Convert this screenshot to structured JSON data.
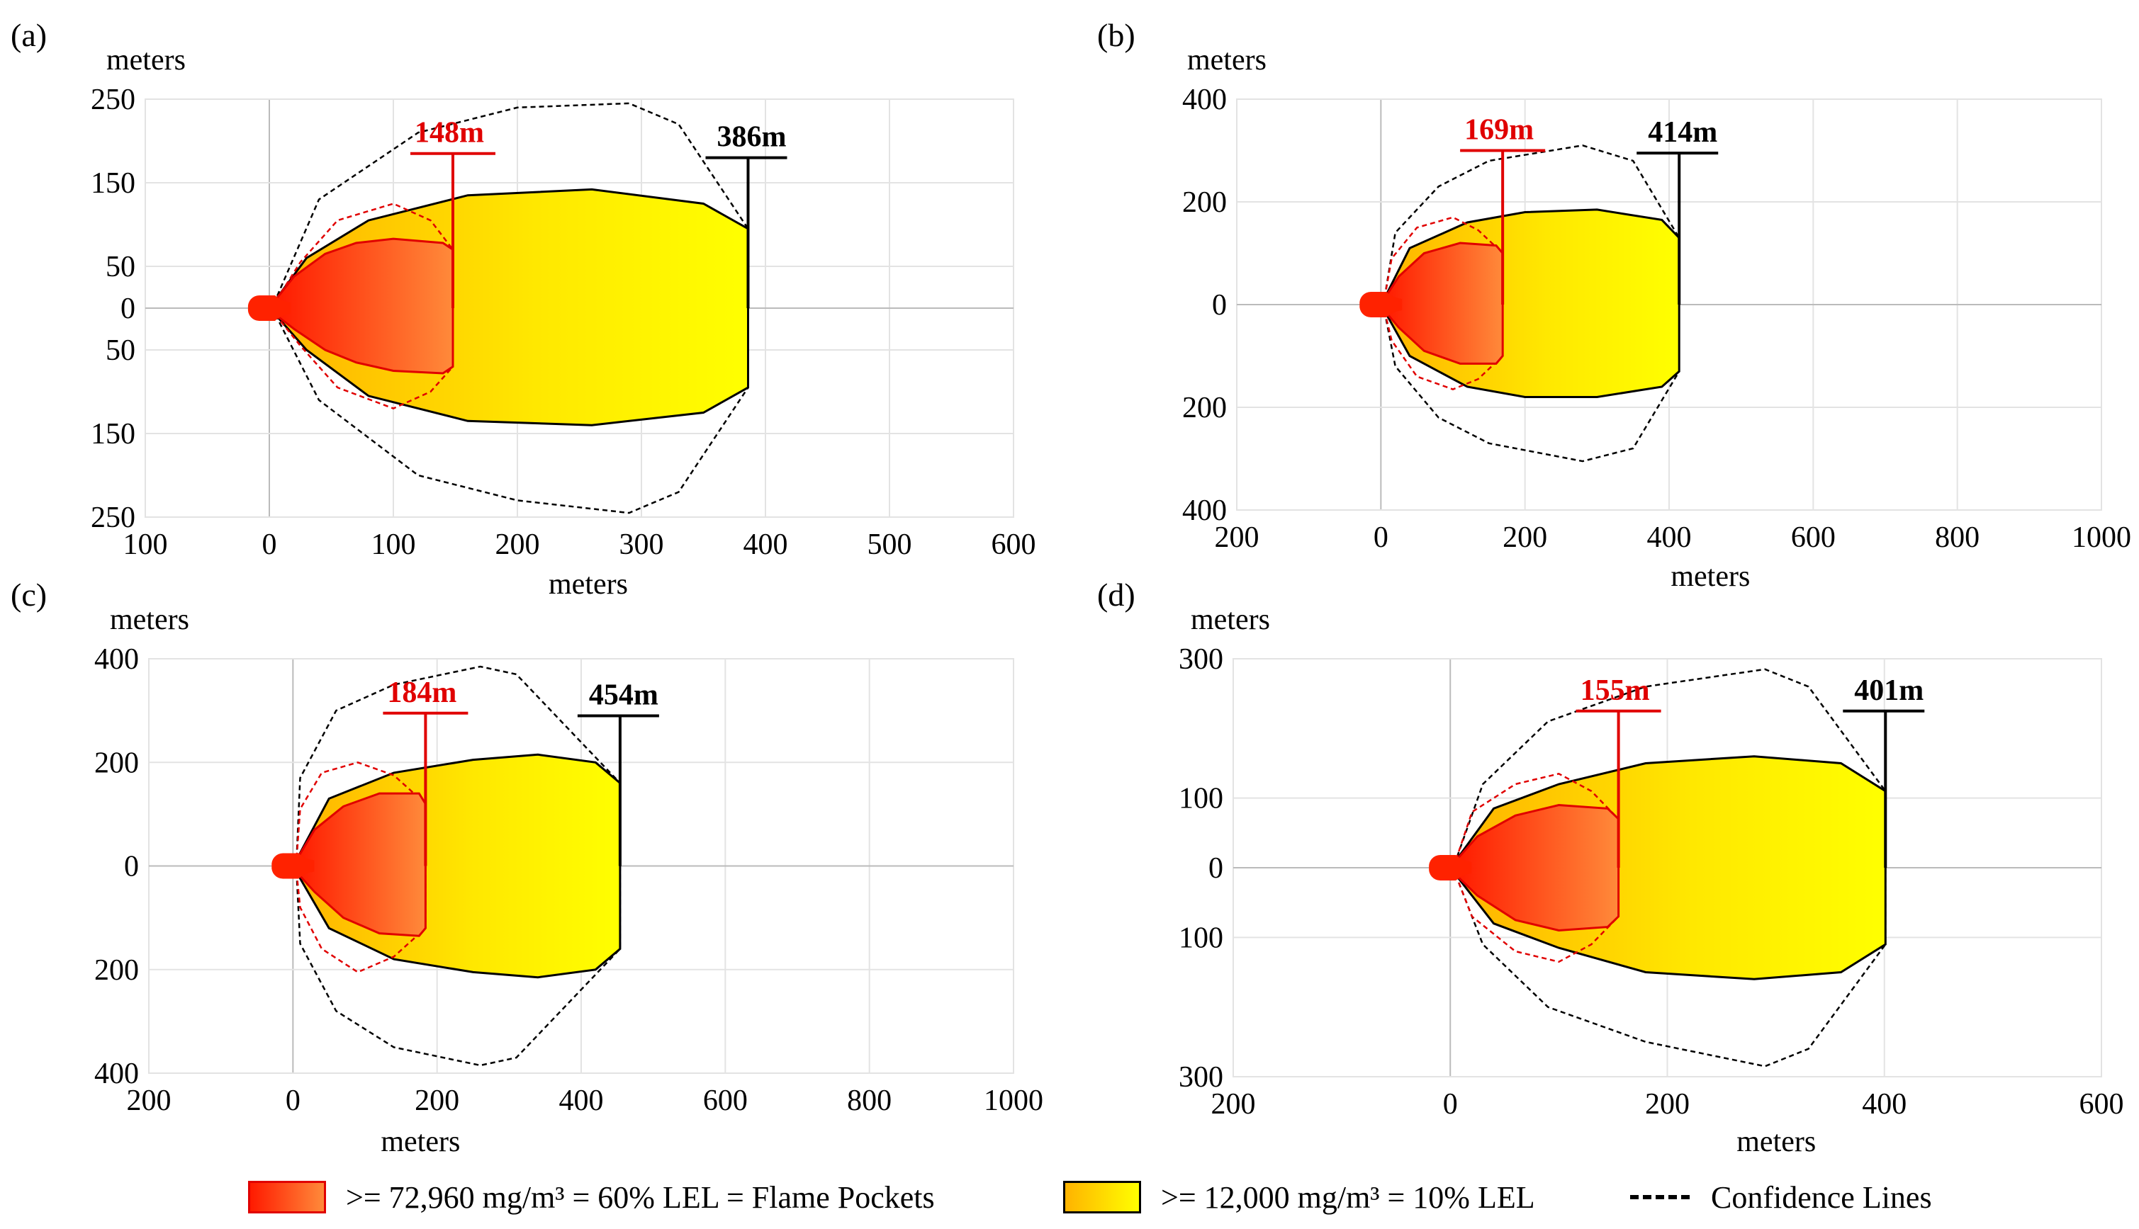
{
  "legend": {
    "flame_pockets": ">= 72,960 mg/m³ = 60% LEL = Flame Pockets",
    "lel10": ">= 12,000 mg/m³ = 10% LEL",
    "confidence": "Confidence Lines"
  },
  "colors": {
    "flame_pocket_outline": "#e00000",
    "flame_gradient": [
      "#ff1a00",
      "#ff8a3a"
    ],
    "lel10_gradient": [
      "#ffb300",
      "#ffff00"
    ],
    "outline": "#000000",
    "grid": "#e3e3e3",
    "axis": "#bbbbbb"
  },
  "chart_data": [
    {
      "panel_label": "(a)",
      "type": "area",
      "xlabel": "meters",
      "ylabel": "meters",
      "xlim": [
        -100,
        600
      ],
      "ylim": [
        -250,
        250
      ],
      "xticks": [
        -100,
        0,
        100,
        200,
        300,
        400,
        500,
        600
      ],
      "xtick_labels": [
        "100",
        "0",
        "100",
        "200",
        "300",
        "400",
        "500",
        "600"
      ],
      "yticks": [
        250,
        150,
        50,
        0,
        -50,
        -150,
        -250
      ],
      "ytick_labels": [
        "250",
        "150",
        "50",
        "0",
        "50",
        "150",
        "250"
      ],
      "grid": true,
      "flame_pocket_length_label": "148m",
      "flame_pocket_length": 148,
      "lel10_length_label": "386m",
      "lel10_length": 386,
      "flame_pocket_marker_y": 185,
      "lel10_marker_y": 180,
      "flame_pocket_boundary": [
        [
          5,
          -8
        ],
        [
          20,
          -25
        ],
        [
          45,
          -50
        ],
        [
          70,
          -65
        ],
        [
          100,
          -75
        ],
        [
          140,
          -78
        ],
        [
          148,
          -70
        ],
        [
          148,
          70
        ],
        [
          140,
          78
        ],
        [
          100,
          83
        ],
        [
          70,
          78
        ],
        [
          45,
          65
        ],
        [
          20,
          38
        ],
        [
          5,
          10
        ]
      ],
      "flame_pocket_confidence": [
        [
          5,
          -8
        ],
        [
          25,
          -45
        ],
        [
          55,
          -95
        ],
        [
          100,
          -120
        ],
        [
          130,
          -100
        ],
        [
          148,
          -70
        ],
        [
          148,
          70
        ],
        [
          130,
          105
        ],
        [
          100,
          125
        ],
        [
          55,
          105
        ],
        [
          25,
          55
        ],
        [
          5,
          8
        ]
      ],
      "lel10_boundary": [
        [
          5,
          -8
        ],
        [
          30,
          -50
        ],
        [
          80,
          -105
        ],
        [
          160,
          -135
        ],
        [
          260,
          -140
        ],
        [
          350,
          -125
        ],
        [
          386,
          -95
        ],
        [
          386,
          95
        ],
        [
          350,
          125
        ],
        [
          260,
          142
        ],
        [
          160,
          135
        ],
        [
          80,
          105
        ],
        [
          30,
          60
        ],
        [
          5,
          10
        ]
      ],
      "lel10_confidence": [
        [
          5,
          -8
        ],
        [
          40,
          -110
        ],
        [
          120,
          -200
        ],
        [
          200,
          -230
        ],
        [
          290,
          -245
        ],
        [
          330,
          -220
        ],
        [
          386,
          -95
        ],
        [
          386,
          95
        ],
        [
          330,
          220
        ],
        [
          290,
          245
        ],
        [
          200,
          240
        ],
        [
          120,
          210
        ],
        [
          40,
          130
        ],
        [
          5,
          10
        ]
      ]
    },
    {
      "panel_label": "(b)",
      "type": "area",
      "xlabel": "meters",
      "ylabel": "meters",
      "xlim": [
        -200,
        1000
      ],
      "ylim": [
        -400,
        400
      ],
      "xticks": [
        -200,
        0,
        200,
        400,
        600,
        800,
        1000
      ],
      "xtick_labels": [
        "200",
        "0",
        "200",
        "400",
        "600",
        "800",
        "1000"
      ],
      "yticks": [
        400,
        200,
        0,
        -200,
        -400
      ],
      "ytick_labels": [
        "400",
        "200",
        "0",
        "200",
        "400"
      ],
      "grid": true,
      "flame_pocket_length_label": "169m",
      "flame_pocket_length": 169,
      "lel10_length_label": "414m",
      "lel10_length": 414,
      "flame_pocket_marker_y": 300,
      "lel10_marker_y": 295,
      "flame_pocket_boundary": [
        [
          5,
          -12
        ],
        [
          25,
          -45
        ],
        [
          60,
          -90
        ],
        [
          110,
          -115
        ],
        [
          160,
          -115
        ],
        [
          169,
          -100
        ],
        [
          169,
          100
        ],
        [
          160,
          115
        ],
        [
          110,
          120
        ],
        [
          60,
          100
        ],
        [
          25,
          55
        ],
        [
          5,
          12
        ]
      ],
      "flame_pocket_confidence": [
        [
          5,
          -12
        ],
        [
          15,
          -70
        ],
        [
          50,
          -140
        ],
        [
          100,
          -165
        ],
        [
          135,
          -145
        ],
        [
          169,
          -100
        ],
        [
          169,
          100
        ],
        [
          135,
          145
        ],
        [
          100,
          170
        ],
        [
          50,
          150
        ],
        [
          15,
          90
        ],
        [
          5,
          12
        ]
      ],
      "lel10_boundary": [
        [
          5,
          -12
        ],
        [
          40,
          -100
        ],
        [
          120,
          -160
        ],
        [
          200,
          -180
        ],
        [
          300,
          -180
        ],
        [
          390,
          -160
        ],
        [
          414,
          -130
        ],
        [
          414,
          130
        ],
        [
          390,
          165
        ],
        [
          300,
          185
        ],
        [
          200,
          180
        ],
        [
          120,
          160
        ],
        [
          40,
          110
        ],
        [
          5,
          12
        ]
      ],
      "lel10_confidence": [
        [
          5,
          -12
        ],
        [
          20,
          -120
        ],
        [
          80,
          -220
        ],
        [
          150,
          -270
        ],
        [
          280,
          -305
        ],
        [
          350,
          -280
        ],
        [
          414,
          -130
        ],
        [
          414,
          130
        ],
        [
          350,
          280
        ],
        [
          280,
          310
        ],
        [
          150,
          280
        ],
        [
          80,
          230
        ],
        [
          20,
          140
        ],
        [
          5,
          12
        ]
      ]
    },
    {
      "panel_label": "(c)",
      "type": "area",
      "xlabel": "meters",
      "ylabel": "meters",
      "xlim": [
        -200,
        1000
      ],
      "ylim": [
        -400,
        400
      ],
      "xticks": [
        -200,
        0,
        200,
        400,
        600,
        800,
        1000
      ],
      "xtick_labels": [
        "200",
        "0",
        "200",
        "400",
        "600",
        "800",
        "1000"
      ],
      "yticks": [
        400,
        200,
        0,
        -200,
        -400
      ],
      "ytick_labels": [
        "400",
        "200",
        "0",
        "200",
        "400"
      ],
      "grid": true,
      "flame_pocket_length_label": "184m",
      "flame_pocket_length": 184,
      "lel10_length_label": "454m",
      "lel10_length": 454,
      "flame_pocket_marker_y": 295,
      "lel10_marker_y": 290,
      "flame_pocket_boundary": [
        [
          5,
          -12
        ],
        [
          30,
          -50
        ],
        [
          70,
          -100
        ],
        [
          120,
          -130
        ],
        [
          175,
          -135
        ],
        [
          184,
          -120
        ],
        [
          184,
          120
        ],
        [
          175,
          140
        ],
        [
          120,
          140
        ],
        [
          70,
          115
        ],
        [
          30,
          70
        ],
        [
          5,
          12
        ]
      ],
      "flame_pocket_confidence": [
        [
          5,
          -12
        ],
        [
          10,
          -80
        ],
        [
          40,
          -160
        ],
        [
          90,
          -205
        ],
        [
          140,
          -175
        ],
        [
          184,
          -120
        ],
        [
          184,
          120
        ],
        [
          140,
          175
        ],
        [
          90,
          200
        ],
        [
          40,
          180
        ],
        [
          10,
          110
        ],
        [
          5,
          12
        ]
      ],
      "lel10_boundary": [
        [
          5,
          -12
        ],
        [
          50,
          -120
        ],
        [
          140,
          -180
        ],
        [
          250,
          -205
        ],
        [
          340,
          -215
        ],
        [
          420,
          -200
        ],
        [
          454,
          -160
        ],
        [
          454,
          160
        ],
        [
          420,
          200
        ],
        [
          340,
          215
        ],
        [
          250,
          205
        ],
        [
          140,
          180
        ],
        [
          50,
          130
        ],
        [
          5,
          12
        ]
      ],
      "lel10_confidence": [
        [
          5,
          -12
        ],
        [
          10,
          -150
        ],
        [
          60,
          -280
        ],
        [
          140,
          -350
        ],
        [
          260,
          -385
        ],
        [
          310,
          -370
        ],
        [
          454,
          -160
        ],
        [
          454,
          160
        ],
        [
          310,
          370
        ],
        [
          260,
          385
        ],
        [
          140,
          350
        ],
        [
          60,
          300
        ],
        [
          10,
          170
        ],
        [
          5,
          12
        ]
      ]
    },
    {
      "panel_label": "(d)",
      "type": "area",
      "xlabel": "meters",
      "ylabel": "meters",
      "xlim": [
        -200,
        600
      ],
      "ylim": [
        -300,
        300
      ],
      "xticks": [
        -200,
        0,
        200,
        400,
        600
      ],
      "xtick_labels": [
        "200",
        "0",
        "200",
        "400",
        "600"
      ],
      "yticks": [
        300,
        100,
        0,
        -100,
        -300
      ],
      "ytick_labels": [
        "300",
        "100",
        "0",
        "100",
        "300"
      ],
      "grid": true,
      "flame_pocket_length_label": "155m",
      "flame_pocket_length": 155,
      "lel10_length_label": "401m",
      "lel10_length": 401,
      "flame_pocket_marker_y": 225,
      "lel10_marker_y": 225,
      "flame_pocket_boundary": [
        [
          5,
          -10
        ],
        [
          25,
          -40
        ],
        [
          60,
          -75
        ],
        [
          100,
          -90
        ],
        [
          145,
          -85
        ],
        [
          155,
          -70
        ],
        [
          155,
          70
        ],
        [
          145,
          85
        ],
        [
          100,
          90
        ],
        [
          60,
          75
        ],
        [
          25,
          45
        ],
        [
          5,
          10
        ]
      ],
      "flame_pocket_confidence": [
        [
          5,
          -10
        ],
        [
          20,
          -70
        ],
        [
          60,
          -120
        ],
        [
          100,
          -135
        ],
        [
          130,
          -110
        ],
        [
          155,
          -70
        ],
        [
          155,
          70
        ],
        [
          130,
          110
        ],
        [
          100,
          135
        ],
        [
          60,
          120
        ],
        [
          20,
          80
        ],
        [
          5,
          10
        ]
      ],
      "lel10_boundary": [
        [
          5,
          -10
        ],
        [
          40,
          -80
        ],
        [
          100,
          -115
        ],
        [
          180,
          -150
        ],
        [
          280,
          -160
        ],
        [
          360,
          -150
        ],
        [
          401,
          -110
        ],
        [
          401,
          110
        ],
        [
          360,
          150
        ],
        [
          280,
          160
        ],
        [
          180,
          150
        ],
        [
          100,
          120
        ],
        [
          40,
          85
        ],
        [
          5,
          10
        ]
      ],
      "lel10_confidence": [
        [
          5,
          -10
        ],
        [
          30,
          -110
        ],
        [
          90,
          -200
        ],
        [
          180,
          -250
        ],
        [
          290,
          -285
        ],
        [
          330,
          -260
        ],
        [
          401,
          -110
        ],
        [
          401,
          110
        ],
        [
          330,
          260
        ],
        [
          290,
          285
        ],
        [
          180,
          260
        ],
        [
          90,
          210
        ],
        [
          30,
          120
        ],
        [
          5,
          10
        ]
      ]
    }
  ]
}
